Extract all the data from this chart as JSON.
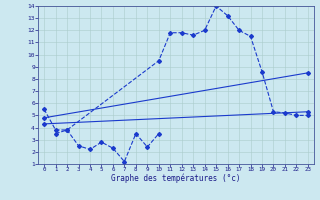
{
  "xlabel": "Graphe des températures (°c)",
  "bg_color": "#cce8f0",
  "line_color": "#1a3acc",
  "xlim": [
    -0.5,
    23.5
  ],
  "ylim": [
    1,
    14
  ],
  "xticks": [
    0,
    1,
    2,
    3,
    4,
    5,
    6,
    7,
    8,
    9,
    10,
    11,
    12,
    13,
    14,
    15,
    16,
    17,
    18,
    19,
    20,
    21,
    22,
    23
  ],
  "yticks": [
    1,
    2,
    3,
    4,
    5,
    6,
    7,
    8,
    9,
    10,
    11,
    12,
    13,
    14
  ],
  "series": {
    "min": {
      "x": [
        1,
        2,
        3,
        4,
        5,
        6,
        7,
        8,
        9,
        10
      ],
      "y": [
        3.5,
        3.8,
        2.5,
        2.2,
        2.8,
        2.3,
        1.2,
        3.5,
        2.4,
        3.5
      ]
    },
    "max": {
      "x": [
        0,
        1,
        2,
        10,
        11,
        12,
        13,
        14,
        15,
        16,
        17,
        18,
        19,
        20,
        21,
        22,
        23
      ],
      "y": [
        5.5,
        3.8,
        3.8,
        9.5,
        11.8,
        11.8,
        11.6,
        12.0,
        14.0,
        13.2,
        12.0,
        11.5,
        8.6,
        5.3,
        5.2,
        5.0,
        5.0
      ]
    },
    "trend1": {
      "x": [
        0,
        23
      ],
      "y": [
        4.8,
        8.5
      ]
    },
    "trend2": {
      "x": [
        0,
        23
      ],
      "y": [
        4.3,
        5.3
      ]
    }
  }
}
